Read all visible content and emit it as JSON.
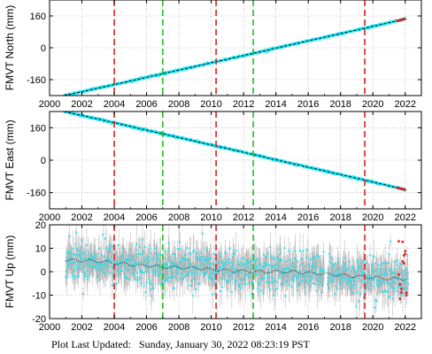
{
  "chart_data": [
    {
      "type": "scatter",
      "title": "",
      "xlabel": "",
      "ylabel": "FMVT North (mm)",
      "xlim": [
        2000,
        2023
      ],
      "ylim": [
        -240,
        240
      ],
      "x_ticks": [
        "2000",
        "2002",
        "2004",
        "2006",
        "2008",
        "2010",
        "2012",
        "2014",
        "2016",
        "2018",
        "2020",
        "2022"
      ],
      "y_ticks": [
        "160",
        "0",
        "-160"
      ],
      "grid": "dotted",
      "series": [
        {
          "values_desc": "",
          "x": [
            2000.9,
            2004,
            2007,
            2010.3,
            2012.6,
            2016,
            2019.5,
            2022.0
          ],
          "y": [
            -240,
            -185,
            -130,
            -70,
            -28,
            35,
            98,
            145
          ]
        }
      ],
      "colors": {
        "points": "#22e4f4",
        "fit": "#000000",
        "recent": "#e02020"
      },
      "vlines_red": [
        2004.0,
        2010.3,
        2019.5
      ],
      "vlines_green": [
        2007.0,
        2012.6
      ]
    },
    {
      "type": "scatter",
      "title": "",
      "xlabel": "",
      "ylabel": "FMVT East (mm)",
      "xlim": [
        2000,
        2023
      ],
      "ylim": [
        -240,
        240
      ],
      "x_ticks": [
        "2000",
        "2002",
        "2004",
        "2006",
        "2008",
        "2010",
        "2012",
        "2014",
        "2016",
        "2018",
        "2020",
        "2022"
      ],
      "y_ticks": [
        "160",
        "0",
        "-160"
      ],
      "grid": "dotted",
      "series": [
        {
          "x": [
            2000.9,
            2004,
            2007,
            2010.3,
            2012.6,
            2016,
            2019.5,
            2022.0
          ],
          "y": [
            240,
            185,
            130,
            70,
            28,
            -35,
            -98,
            -145
          ]
        }
      ],
      "colors": {
        "points": "#22e4f4",
        "fit": "#000000",
        "recent": "#e02020"
      },
      "vlines_red": [
        2004.0,
        2010.3,
        2019.5
      ],
      "vlines_green": [
        2007.0,
        2012.6
      ]
    },
    {
      "type": "scatter",
      "title": "",
      "xlabel": "",
      "ylabel": "FMVT Up (mm)",
      "xlim": [
        2000,
        2023
      ],
      "ylim": [
        -20,
        20
      ],
      "x_ticks": [
        "2000",
        "2002",
        "2004",
        "2006",
        "2008",
        "2010",
        "2012",
        "2014",
        "2016",
        "2018",
        "2020",
        "2022"
      ],
      "y_ticks": [
        "20",
        "10",
        "0",
        "-10",
        "-20"
      ],
      "grid": "dotted",
      "series": [
        {
          "x": [
            2001,
            2003,
            2005,
            2007,
            2009,
            2011,
            2013,
            2015,
            2017,
            2019,
            2021,
            2022
          ],
          "y": [
            5,
            4.5,
            3,
            2,
            1.5,
            0.5,
            0,
            0,
            -1,
            -2,
            -3,
            -3
          ]
        }
      ],
      "colors": {
        "points": "#22e4f4",
        "errorbars": "#b0b0b0",
        "fit": "#000000",
        "recent": "#e02020"
      },
      "vlines_red": [
        2004.0,
        2010.3,
        2019.5
      ],
      "vlines_green": [
        2007.0,
        2012.6
      ]
    }
  ],
  "footer": {
    "label": "Plot Last Updated:",
    "value": "Sunday, January 30, 2022 08:23:19 PST"
  }
}
